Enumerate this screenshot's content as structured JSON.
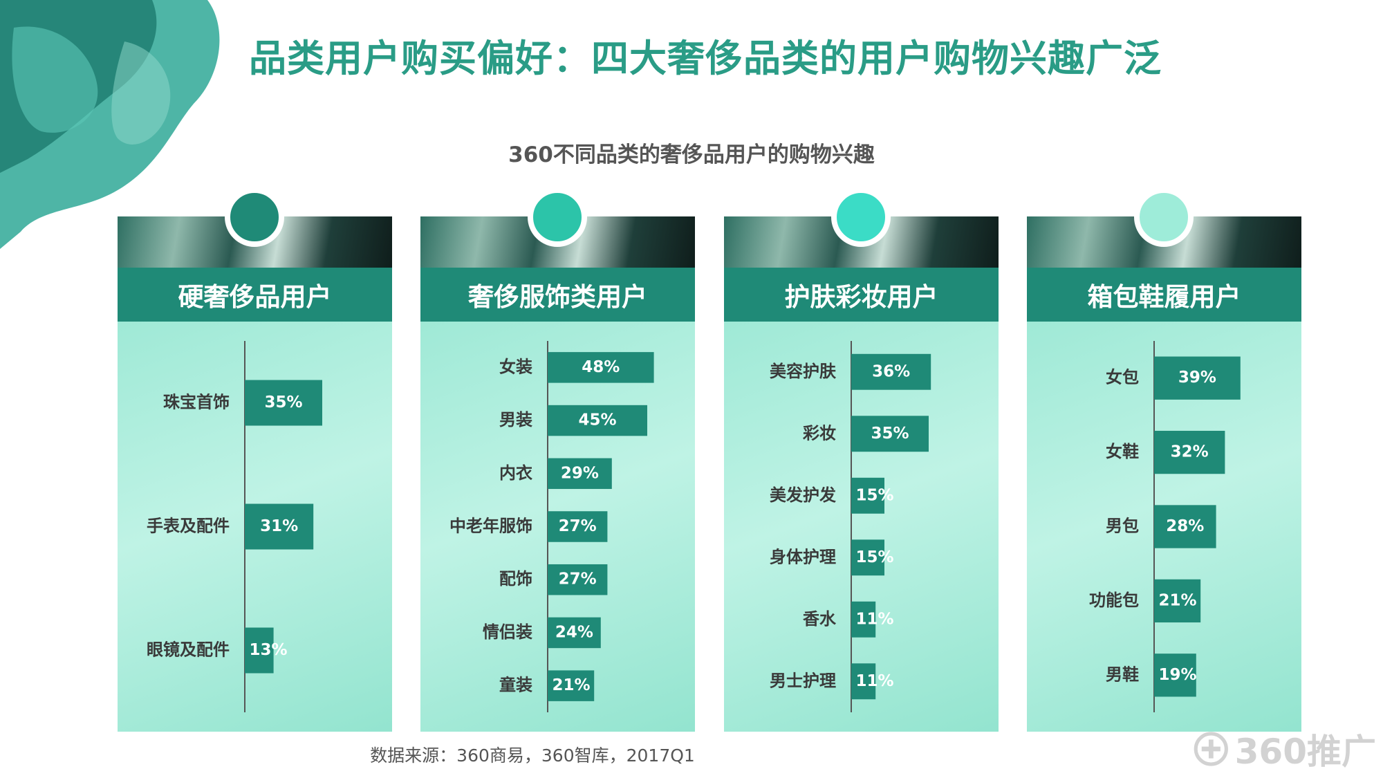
{
  "page": {
    "title": "品类用户购买偏好：四大奢侈品类的用户购物兴趣广泛",
    "subtitle": "360不同品类的奢侈品用户的购物兴趣",
    "source": "数据来源：360商易，360智库，2017Q1",
    "logo_text": "360推广"
  },
  "colors": {
    "title": "#2a9c86",
    "header": "#1f8a77",
    "bar": "#1f8a77",
    "panel_bg": "#a8ecdb",
    "circles": [
      "#1f8a77",
      "#2cc4a9",
      "#3bdcc6",
      "#9eecd9"
    ]
  },
  "chart_data": [
    {
      "type": "bar",
      "orientation": "horizontal",
      "title": "硬奢侈品用户",
      "categories": [
        "珠宝首饰",
        "手表及配件",
        "眼镜及配件"
      ],
      "values": [
        35,
        31,
        13
      ],
      "labels": [
        "35%",
        "31%",
        "13%"
      ],
      "xlim": [
        0,
        50
      ]
    },
    {
      "type": "bar",
      "orientation": "horizontal",
      "title": "奢侈服饰类用户",
      "categories": [
        "女装",
        "男装",
        "内衣",
        "中老年服饰",
        "配饰",
        "情侣装",
        "童装"
      ],
      "values": [
        48,
        45,
        29,
        27,
        27,
        24,
        21
      ],
      "labels": [
        "48%",
        "45%",
        "29%",
        "27%",
        "27%",
        "24%",
        "21%"
      ],
      "xlim": [
        0,
        50
      ]
    },
    {
      "type": "bar",
      "orientation": "horizontal",
      "title": "护肤彩妆用户",
      "categories": [
        "美容护肤",
        "彩妆",
        "美发护发",
        "身体护理",
        "香水",
        "男士护理"
      ],
      "values": [
        36,
        35,
        15,
        15,
        11,
        11
      ],
      "labels": [
        "36%",
        "35%",
        "15%",
        "15%",
        "11%",
        "11%"
      ],
      "xlim": [
        0,
        50
      ]
    },
    {
      "type": "bar",
      "orientation": "horizontal",
      "title": "箱包鞋履用户",
      "categories": [
        "女包",
        "女鞋",
        "男包",
        "功能包",
        "男鞋"
      ],
      "values": [
        39,
        32,
        28,
        21,
        19
      ],
      "labels": [
        "39%",
        "32%",
        "28%",
        "21%",
        "19%"
      ],
      "xlim": [
        0,
        50
      ]
    }
  ]
}
